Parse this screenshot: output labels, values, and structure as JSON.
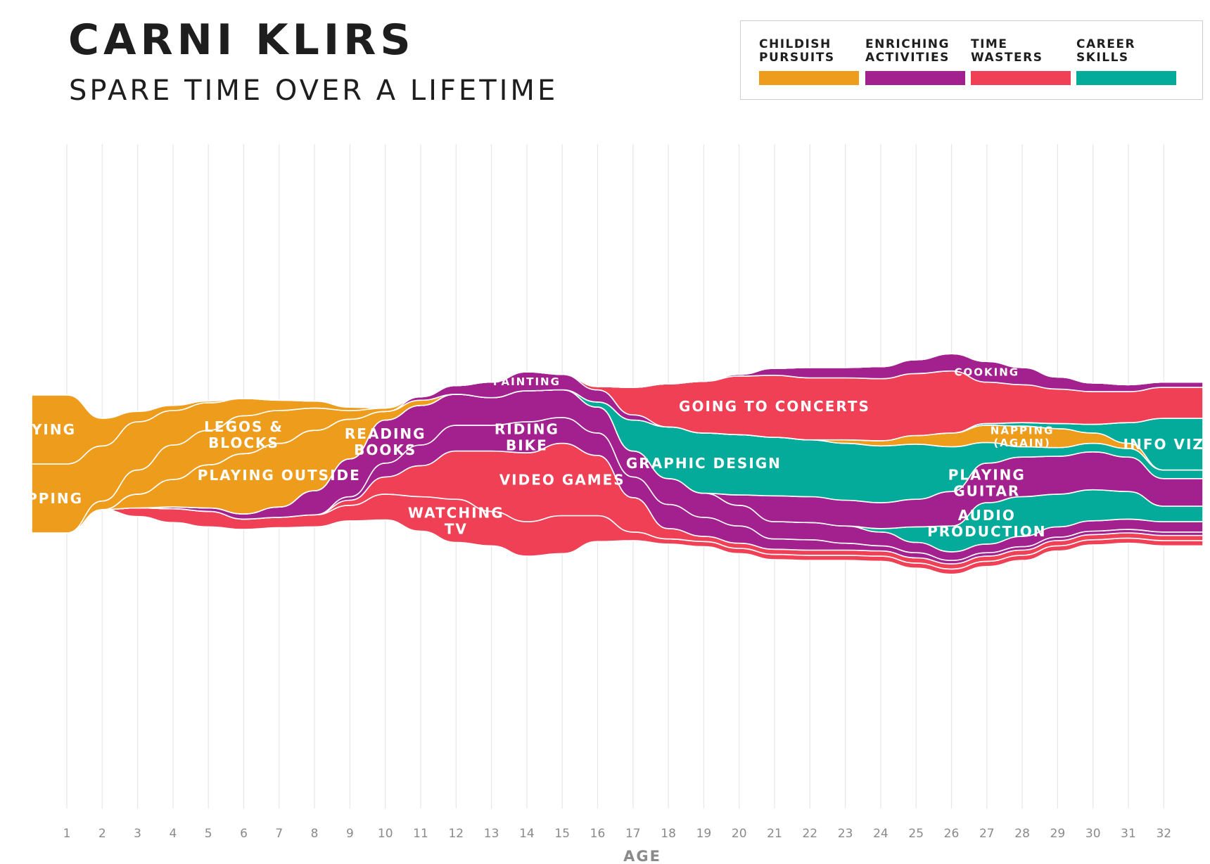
{
  "title": "CARNI KLIRS",
  "subtitle": "SPARE TIME OVER A LIFETIME",
  "legend": [
    {
      "label": "CHILDISH\nPURSUITS",
      "color": "#ee9c1c"
    },
    {
      "label": "ENRICHING\nACTIVITIES",
      "color": "#a3218f"
    },
    {
      "label": "TIME\nWASTERS",
      "color": "#ef4056"
    },
    {
      "label": "CAREER\nSKILLS",
      "color": "#04ab9a"
    }
  ],
  "chart_data": {
    "type": "area",
    "title": "SPARE TIME OVER A LIFETIME",
    "xlabel": "AGE",
    "ylabel": "",
    "categories": [
      "1",
      "2",
      "3",
      "4",
      "5",
      "6",
      "7",
      "8",
      "9",
      "10",
      "11",
      "12",
      "13",
      "14",
      "15",
      "16",
      "17",
      "18",
      "19",
      "20",
      "21",
      "22",
      "23",
      "24",
      "25",
      "26",
      "27",
      "28",
      "29",
      "30",
      "31",
      "32"
    ],
    "ticks": [
      1,
      2,
      3,
      4,
      5,
      6,
      7,
      8,
      9,
      10,
      11,
      12,
      13,
      14,
      15,
      16,
      17,
      18,
      19,
      20,
      21,
      22,
      23,
      24,
      25,
      26,
      27,
      28,
      29,
      30,
      31,
      32
    ],
    "grid": true,
    "layout": "streamgraph",
    "colors": {
      "childish": "#ee9c1c",
      "enriching": "#a3218f",
      "wasters": "#ef4056",
      "career": "#04ab9a"
    },
    "series": [
      {
        "name": "WATCHING TV",
        "category": "wasters",
        "values": [
          0,
          0,
          0.5,
          0.8,
          0.9,
          0.6,
          0.6,
          0.7,
          0.9,
          1.5,
          2.0,
          2.5,
          2.0,
          2.0,
          2.2,
          1.5,
          0.5,
          0.3,
          0.3,
          0.3,
          0.3,
          0.3,
          0.3,
          0.3,
          0.3,
          0.3,
          0.3,
          0.3,
          0.3,
          0.3,
          0.3,
          0.3
        ]
      },
      {
        "name": "VIDEO GAMES",
        "category": "wasters",
        "values": [
          0,
          0,
          0,
          0,
          0,
          0,
          0,
          0,
          0.3,
          1.0,
          1.8,
          2.8,
          3.5,
          4.0,
          4.2,
          3.5,
          2.0,
          0.6,
          0.3,
          0.3,
          0.3,
          0.3,
          0.3,
          0.3,
          0.3,
          0.3,
          0.3,
          0.3,
          0.3,
          0.3,
          0.3,
          0.3
        ]
      },
      {
        "name": "RIDING BIKE",
        "category": "enriching",
        "values": [
          0,
          0,
          0,
          0,
          0,
          0,
          0,
          0,
          0.2,
          0.8,
          1.2,
          1.5,
          1.5,
          1.8,
          1.5,
          1.3,
          1.2,
          1.4,
          1.1,
          1.0,
          0.6,
          0.6,
          0.4,
          0.3,
          0.3,
          0.2,
          0.2,
          0.2,
          0.2,
          0.2,
          0.2,
          0.2
        ]
      },
      {
        "name": "READING BOOKS",
        "category": "enriching",
        "values": [
          0,
          0,
          0,
          0.1,
          0.2,
          0.3,
          0.6,
          1.4,
          2.2,
          2.5,
          2.3,
          1.8,
          1.6,
          1.8,
          1.6,
          1.5,
          1.5,
          1.5,
          1.4,
          1.2,
          1.0,
          1.0,
          1.0,
          0.8,
          0.6,
          0.5,
          0.5,
          0.6,
          0.6,
          0.6,
          0.6,
          0.6
        ]
      },
      {
        "name": "AUDIO PRODUCTION",
        "category": "career",
        "values": [
          0,
          0,
          0,
          0,
          0,
          0,
          0,
          0,
          0,
          0,
          0,
          0,
          0,
          0,
          0,
          0,
          0,
          0,
          0,
          0,
          0,
          0,
          0,
          0.2,
          0.9,
          1.5,
          2.4,
          2.3,
          1.9,
          1.8,
          1.6,
          0.9
        ]
      },
      {
        "name": "PLAYING GUITAR",
        "category": "enriching",
        "values": [
          0,
          0,
          0,
          0,
          0,
          0,
          0,
          0,
          0,
          0,
          0,
          0,
          0,
          0,
          0,
          0,
          0,
          0,
          0,
          0.6,
          1.5,
          1.5,
          1.5,
          1.5,
          1.6,
          2.0,
          2.3,
          2.3,
          2.2,
          2.2,
          2.0,
          1.6
        ]
      },
      {
        "name": "GRAPHIC DESIGN",
        "category": "career",
        "values": [
          0,
          0,
          0,
          0,
          0,
          0,
          0,
          0,
          0,
          0,
          0,
          0,
          0,
          0,
          0,
          0.3,
          1.8,
          3.0,
          3.5,
          3.5,
          3.4,
          3.3,
          3.3,
          3.3,
          3.2,
          2.6,
          1.2,
          0.6,
          0.5,
          0.5,
          0.5,
          0.5
        ]
      },
      {
        "name": "NAPPING (AGAIN)",
        "category": "childish",
        "values": [
          0,
          0,
          0,
          0,
          0,
          0,
          0,
          0,
          0,
          0,
          0,
          0,
          0,
          0,
          0,
          0,
          0,
          0,
          0,
          0,
          0,
          0,
          0.2,
          0.3,
          0.5,
          0.8,
          1.0,
          1.2,
          1.1,
          0.6,
          0.3,
          0
        ]
      },
      {
        "name": "INFO VIZ",
        "category": "career",
        "values": [
          0,
          0,
          0,
          0,
          0,
          0,
          0,
          0,
          0,
          0,
          0,
          0,
          0,
          0,
          0,
          0,
          0,
          0,
          0,
          0,
          0,
          0,
          0,
          0,
          0,
          0,
          0.1,
          0.2,
          0.3,
          0.5,
          1.2,
          3.0
        ]
      },
      {
        "name": "PLAYING OUTSIDE",
        "category": "childish",
        "values": [
          0,
          0,
          0.8,
          1.6,
          2.5,
          3.5,
          3.7,
          3.5,
          2.3,
          0.5,
          0.3,
          0,
          0,
          0,
          0,
          0,
          0,
          0,
          0,
          0,
          0,
          0,
          0,
          0,
          0,
          0,
          0,
          0,
          0,
          0,
          0,
          0
        ]
      },
      {
        "name": "PAINTING",
        "category": "enriching",
        "values": [
          0,
          0,
          0,
          0,
          0,
          0,
          0,
          0,
          0,
          0,
          0.2,
          0.5,
          0.9,
          1.1,
          0.9,
          0.7,
          0.3,
          0,
          0,
          0,
          0,
          0,
          0,
          0,
          0,
          0,
          0,
          0,
          0,
          0,
          0,
          0
        ]
      },
      {
        "name": "GOING TO CONCERTS",
        "category": "wasters",
        "values": [
          0,
          0,
          0,
          0,
          0,
          0,
          0,
          0,
          0,
          0,
          0,
          0,
          0,
          0,
          0,
          0.2,
          1.6,
          2.5,
          3.0,
          3.4,
          3.6,
          3.6,
          3.6,
          3.6,
          3.6,
          3.6,
          2.4,
          2.2,
          2.0,
          1.9,
          1.8,
          1.8
        ]
      },
      {
        "name": "COOKING",
        "category": "enriching",
        "values": [
          0,
          0,
          0,
          0,
          0,
          0,
          0,
          0,
          0,
          0,
          0,
          0,
          0,
          0,
          0,
          0,
          0,
          0,
          0,
          0.1,
          0.4,
          0.6,
          0.6,
          0.7,
          0.8,
          1.0,
          1.2,
          1.0,
          0.7,
          0.5,
          0.4,
          0.3
        ]
      },
      {
        "name": "LEGOS & BLOCKS",
        "category": "childish",
        "values": [
          0,
          0.5,
          1.4,
          2.0,
          2.0,
          2.2,
          1.9,
          1.3,
          0.5,
          0.2,
          0,
          0,
          0,
          0,
          0,
          0,
          0,
          0,
          0,
          0,
          0,
          0,
          0,
          0,
          0,
          0,
          0,
          0,
          0,
          0,
          0,
          0
        ]
      },
      {
        "name": "NAPPING",
        "category": "childish",
        "values": [
          4.0,
          3.2,
          2.8,
          2.0,
          1.6,
          1.0,
          0.6,
          0.4,
          0.2,
          0,
          0,
          0,
          0,
          0,
          0,
          0,
          0,
          0,
          0,
          0,
          0,
          0,
          0,
          0,
          0,
          0,
          0,
          0,
          0,
          0,
          0,
          0
        ]
      },
      {
        "name": "CRYING",
        "category": "childish",
        "values": [
          4.0,
          1.6,
          0.6,
          0.3,
          0.1,
          0,
          0,
          0,
          0,
          0,
          0,
          0,
          0,
          0,
          0,
          0,
          0,
          0,
          0,
          0,
          0,
          0,
          0,
          0,
          0,
          0,
          0,
          0,
          0,
          0,
          0,
          0
        ]
      }
    ]
  }
}
